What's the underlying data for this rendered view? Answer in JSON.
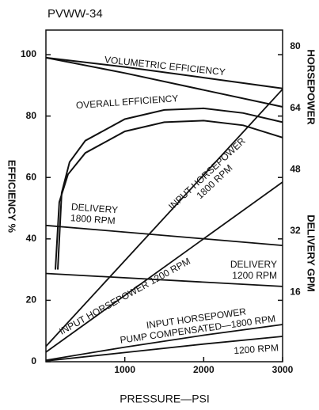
{
  "chart_data": {
    "type": "line",
    "title": "PVWW-34",
    "xlabel": "PRESSURE—PSI",
    "ylabel": "EFFICIENCY %",
    "y2label": [
      "HORSEPOWER",
      "DELIVERY GPM"
    ],
    "xlim": [
      0,
      3000
    ],
    "xticks": [
      1000,
      2000,
      3000
    ],
    "ylim": [
      0,
      108
    ],
    "yticks": [
      0,
      20,
      40,
      60,
      80,
      100
    ],
    "y2lim": [
      0,
      86.4
    ],
    "y2ticks": [
      16,
      32,
      48,
      64,
      80
    ],
    "color": "#111111",
    "series": [
      {
        "x": [
          0,
          1000,
          2000,
          3000
        ],
        "values": [
          99,
          96,
          92.5,
          89
        ]
      },
      {
        "x": [
          0,
          1000,
          2000,
          3000
        ],
        "values": [
          99,
          94,
          88.5,
          83
        ]
      },
      {
        "x": [
          150,
          200,
          300,
          500,
          1000,
          1500,
          2000,
          2500,
          3000
        ],
        "values": [
          30,
          55,
          65,
          72,
          79,
          82,
          82.5,
          81,
          78
        ]
      },
      {
        "x": [
          120,
          170,
          280,
          500,
          1000,
          1500,
          2000,
          2500,
          3000
        ],
        "values": [
          30,
          52,
          61,
          68,
          75,
          78,
          78.5,
          77,
          73
        ]
      },
      {
        "x": [
          0,
          3000
        ],
        "values": [
          4,
          71
        ],
        "axis": "y2"
      },
      {
        "x": [
          0,
          3000
        ],
        "values": [
          2.5,
          46.8
        ],
        "axis": "y2"
      },
      {
        "x": [
          0,
          3000
        ],
        "values": [
          35.5,
          30.3
        ],
        "axis": "y2"
      },
      {
        "x": [
          0,
          3000
        ],
        "values": [
          23,
          19.6
        ],
        "axis": "y2"
      },
      {
        "x": [
          0,
          1000,
          2000,
          3000
        ],
        "values": [
          0.4,
          3.8,
          6.9,
          9.7
        ],
        "axis": "y2"
      },
      {
        "x": [
          0,
          1000,
          2000,
          3000
        ],
        "values": [
          0.2,
          2.4,
          4.6,
          6.6
        ],
        "axis": "y2"
      }
    ],
    "annotations": [
      {
        "lines": [
          "VOLUMETRIC EFFICIENCY"
        ]
      },
      {
        "lines": [
          "OVERALL EFFICIENCY"
        ]
      },
      {
        "lines": [
          "DELIVERY",
          "1800 RPM"
        ]
      },
      {
        "lines": [
          "INPUT HORSEPOWER",
          "1800 RPM"
        ]
      },
      {
        "lines": [
          "INPUT HORSEPOWER 1200 RPM"
        ]
      },
      {
        "lines": [
          "DELIVERY",
          "1200 RPM"
        ]
      },
      {
        "lines": [
          "INPUT HORSEPOWER",
          "PUMP COMPENSATED—1800 RPM"
        ]
      },
      {
        "lines": [
          "1200 RPM"
        ]
      }
    ]
  }
}
